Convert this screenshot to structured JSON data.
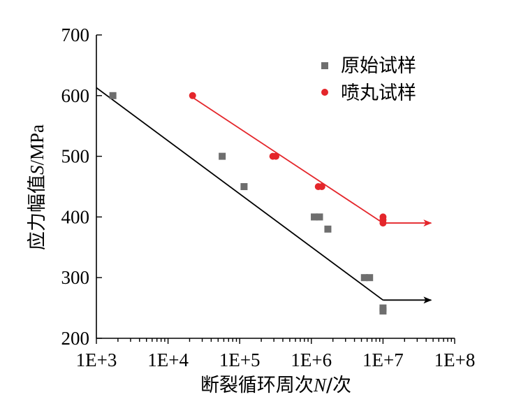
{
  "chart_data": {
    "type": "scatter",
    "xscale": "log",
    "xlim": [
      1000,
      100000000
    ],
    "ylim": [
      200,
      700
    ],
    "xticks": [
      1000,
      10000,
      100000,
      1000000,
      10000000,
      100000000
    ],
    "xtick_labels": [
      "1E+3",
      "1E+4",
      "1E+5",
      "1E+6",
      "1E+7",
      "1E+8"
    ],
    "yticks": [
      200,
      300,
      400,
      500,
      600,
      700
    ],
    "ytick_labels": [
      "200",
      "300",
      "400",
      "500",
      "600",
      "700"
    ],
    "xlabel": {
      "prefix": "断裂循环周次",
      "var": "N",
      "suffix": "/次"
    },
    "ylabel": {
      "prefix": "应力幅值",
      "var": "S",
      "suffix": "/MPa"
    },
    "legend_position": "top-right",
    "grid": false,
    "series": [
      {
        "name": "原始试样",
        "marker": "square",
        "color": "#6e6e6e",
        "points": [
          [
            1700,
            600
          ],
          [
            57000,
            500
          ],
          [
            115000,
            450
          ],
          [
            1100000,
            400
          ],
          [
            1300000,
            400
          ],
          [
            1700000,
            380
          ],
          [
            5500000,
            300
          ],
          [
            6500000,
            300
          ],
          [
            10000000,
            250
          ],
          [
            10000000,
            245
          ]
        ],
        "fit_line": {
          "x": [
            1000,
            10000000
          ],
          "y": [
            613,
            263
          ]
        },
        "runout_arrow": {
          "x": [
            10000000,
            47000000
          ],
          "y": [
            263,
            263
          ]
        },
        "line_color": "#000000"
      },
      {
        "name": "喷丸试样",
        "marker": "circle",
        "color": "#e4262b",
        "points": [
          [
            22000,
            600
          ],
          [
            290000,
            500
          ],
          [
            320000,
            500
          ],
          [
            1250000,
            450
          ],
          [
            1400000,
            450
          ],
          [
            10000000,
            400
          ],
          [
            10000000,
            395
          ],
          [
            10000000,
            390
          ]
        ],
        "fit_line": {
          "x": [
            22000,
            10000000
          ],
          "y": [
            597,
            390
          ]
        },
        "runout_arrow": {
          "x": [
            10000000,
            47000000
          ],
          "y": [
            390,
            390
          ]
        },
        "line_color": "#e4262b"
      }
    ]
  }
}
